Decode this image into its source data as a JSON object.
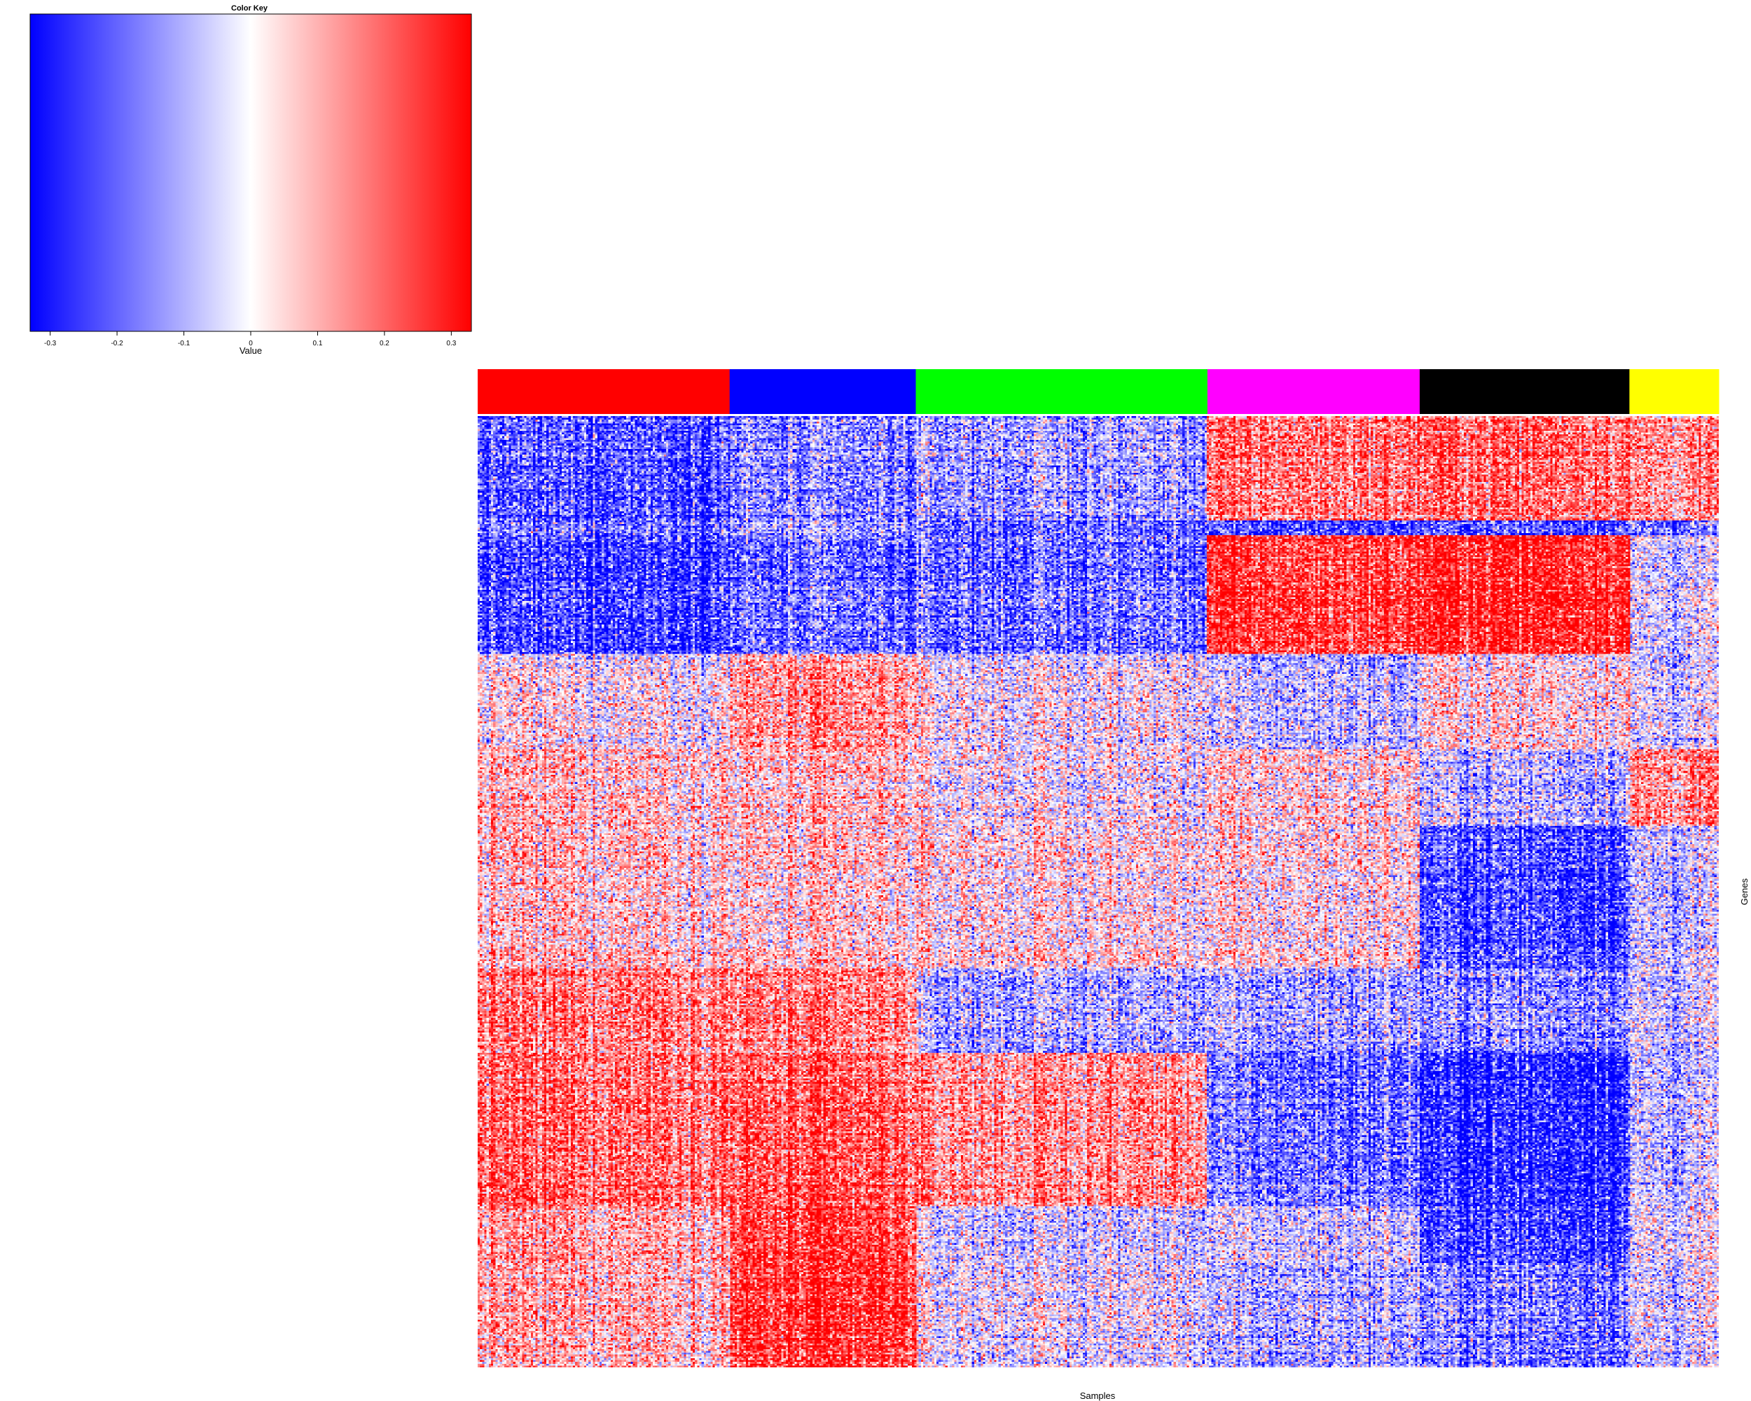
{
  "chart_data": {
    "type": "heatmap",
    "color_key": {
      "title": "Color Key",
      "xlabel": "Value",
      "range": [
        -0.33,
        0.33
      ],
      "colors": {
        "low": "#0000ff",
        "mid": "#ffffff",
        "high": "#ff0000"
      },
      "ticks": [
        "-0.3",
        "-0.2",
        "-0.1",
        "0",
        "0.1",
        "0.2",
        "0.3"
      ],
      "tick_values": [
        -0.3,
        -0.2,
        -0.1,
        0,
        0.1,
        0.2,
        0.3
      ]
    },
    "xlabel": "Samples",
    "ylabel": "Genes",
    "sample_groups": [
      {
        "color": "#ff0000",
        "fraction": 0.203
      },
      {
        "color": "#0000ff",
        "fraction": 0.15
      },
      {
        "color": "#00ff00",
        "fraction": 0.235
      },
      {
        "color": "#ff00ff",
        "fraction": 0.171
      },
      {
        "color": "#000000",
        "fraction": 0.169
      },
      {
        "color": "#ffff00",
        "fraction": 0.072
      }
    ],
    "gene_blocks": [
      {
        "fraction": 0.11,
        "mean_by_group": [
          -0.22,
          -0.16,
          -0.12,
          0.18,
          0.2,
          0.14
        ]
      },
      {
        "fraction": 0.015,
        "mean_by_group": [
          -0.15,
          -0.1,
          -0.18,
          -0.22,
          -0.2,
          -0.15
        ]
      },
      {
        "fraction": 0.125,
        "mean_by_group": [
          -0.24,
          -0.2,
          -0.18,
          0.26,
          0.3,
          -0.05
        ]
      },
      {
        "fraction": 0.1,
        "mean_by_group": [
          0.02,
          0.12,
          0.0,
          -0.08,
          0.05,
          -0.05
        ]
      },
      {
        "fraction": 0.08,
        "mean_by_group": [
          0.1,
          0.08,
          0.02,
          0.06,
          -0.06,
          0.16
        ]
      },
      {
        "fraction": 0.15,
        "mean_by_group": [
          0.08,
          0.06,
          0.04,
          0.04,
          -0.22,
          -0.06
        ]
      },
      {
        "fraction": 0.09,
        "mean_by_group": [
          0.18,
          0.16,
          -0.1,
          -0.1,
          -0.14,
          -0.05
        ]
      },
      {
        "fraction": 0.16,
        "mean_by_group": [
          0.2,
          0.2,
          0.14,
          -0.18,
          -0.28,
          -0.08
        ]
      },
      {
        "fraction": 0.06,
        "mean_by_group": [
          0.12,
          0.24,
          -0.05,
          -0.06,
          -0.24,
          -0.03
        ]
      },
      {
        "fraction": 0.11,
        "mean_by_group": [
          0.1,
          0.26,
          -0.02,
          -0.1,
          -0.16,
          -0.05
        ]
      }
    ]
  }
}
